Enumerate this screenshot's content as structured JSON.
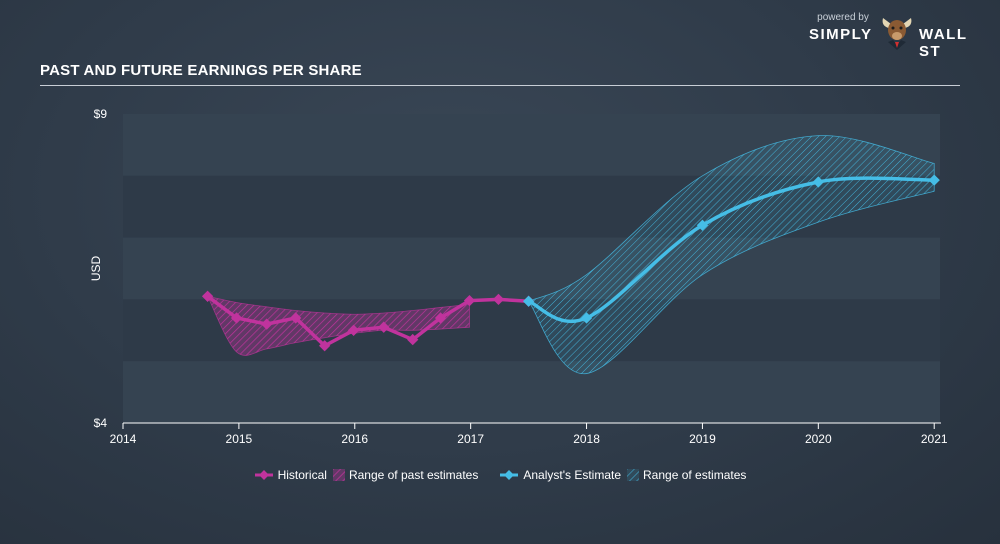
{
  "brand": {
    "powered_by": "powered by",
    "name_left": "SIMPLY",
    "name_right": "WALL ST",
    "logo_icon": "bull-icon"
  },
  "title": "PAST AND FUTURE EARNINGS PER SHARE",
  "colors": {
    "historical": "#c0339d",
    "estimate": "#45bde6",
    "plot_band_dark": "#2e3a48",
    "plot_band_light": "#354351",
    "axis_text": "#ffffff"
  },
  "legend": {
    "historical": "Historical",
    "past_range": "Range of past estimates",
    "estimate": "Analyst's Estimate",
    "future_range": "Range of estimates"
  },
  "chart_data": {
    "type": "line",
    "ylabel": "USD",
    "ylim": [
      4,
      9
    ],
    "y_ticks": [
      "$4",
      "$9"
    ],
    "x_ticks": [
      "2014",
      "2015",
      "2016",
      "2017",
      "2018",
      "2019",
      "2020",
      "2021"
    ],
    "xlim": [
      2014,
      2021.05
    ],
    "series": [
      {
        "name": "Historical",
        "x": [
          2014.73,
          2014.98,
          2015.24,
          2015.49,
          2015.74,
          2015.99,
          2016.25,
          2016.5,
          2016.74,
          2016.99,
          2017.24,
          2017.5
        ],
        "y": [
          6.05,
          5.7,
          5.6,
          5.7,
          5.25,
          5.5,
          5.55,
          5.35,
          5.7,
          5.98,
          6.0,
          5.97
        ]
      },
      {
        "name": "Range of past estimates",
        "x": [
          2014.73,
          2014.98,
          2015.24,
          2015.49,
          2015.74,
          2015.99,
          2016.25,
          2016.5,
          2016.74,
          2016.99
        ],
        "upper": [
          6.05,
          5.95,
          5.88,
          5.82,
          5.78,
          5.76,
          5.78,
          5.82,
          5.87,
          5.92
        ],
        "lower": [
          6.05,
          5.15,
          5.2,
          5.3,
          5.38,
          5.45,
          5.5,
          5.5,
          5.52,
          5.55
        ]
      },
      {
        "name": "Analyst's Estimate",
        "x": [
          2017.5,
          2018.0,
          2019.0,
          2020.0,
          2021.0
        ],
        "y": [
          5.97,
          5.7,
          7.2,
          7.9,
          7.93
        ]
      },
      {
        "name": "Range of estimates",
        "x": [
          2017.5,
          2018.0,
          2019.0,
          2020.0,
          2021.0
        ],
        "upper": [
          5.97,
          6.4,
          8.0,
          8.65,
          8.2
        ],
        "lower": [
          5.97,
          4.8,
          6.4,
          7.25,
          7.75
        ]
      }
    ]
  }
}
